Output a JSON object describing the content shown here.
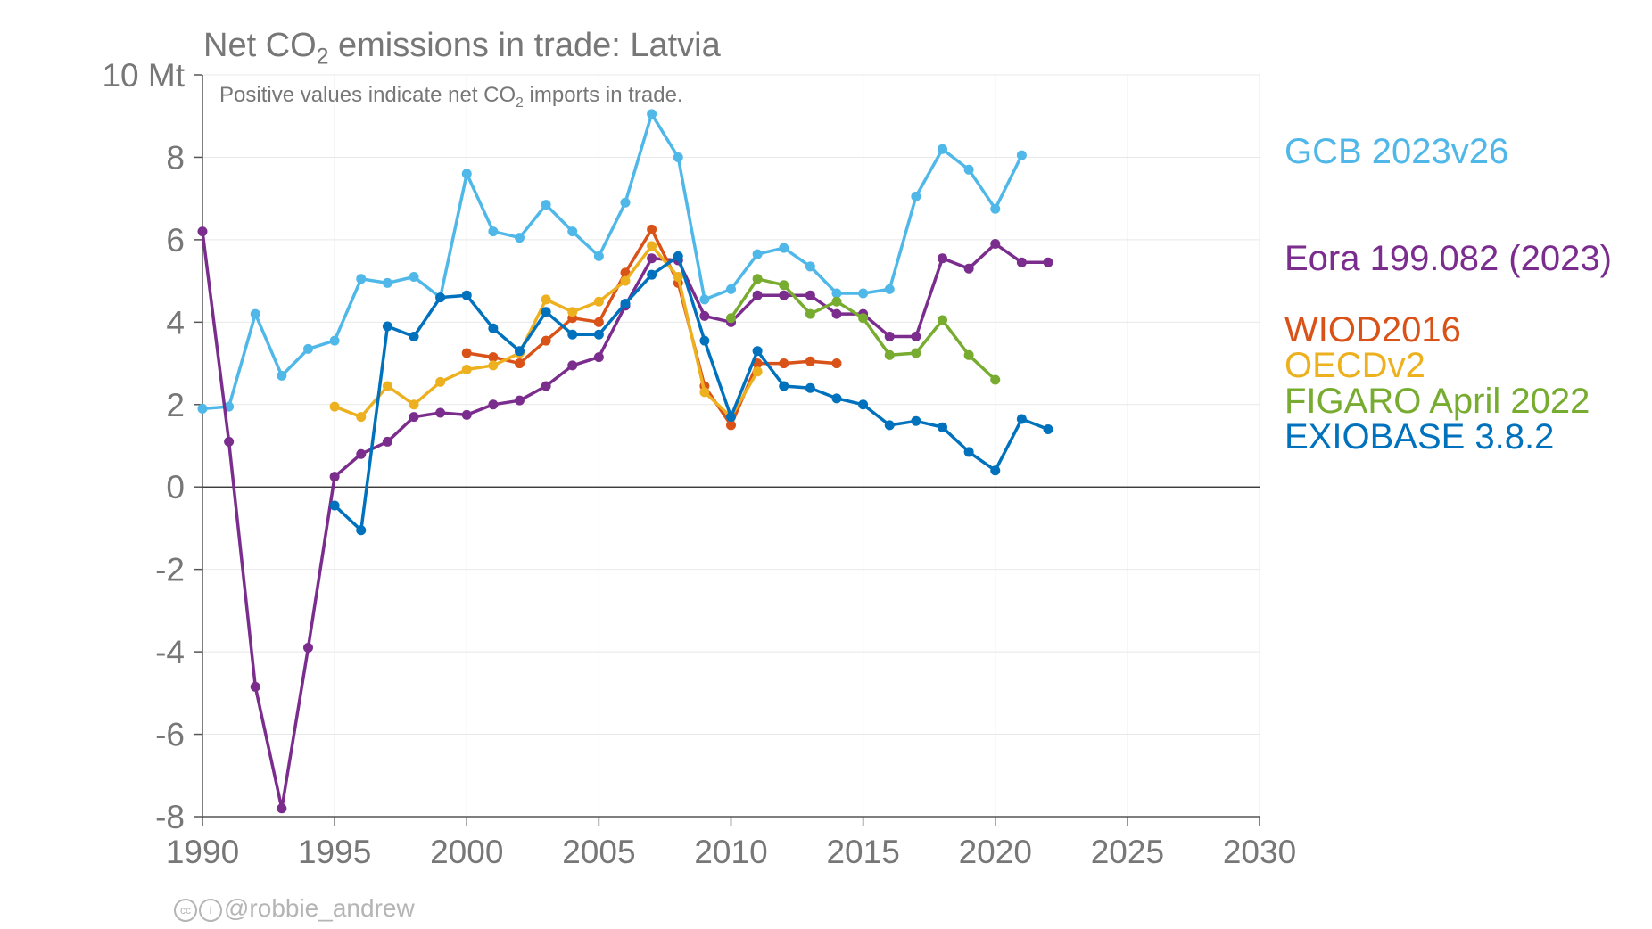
{
  "chart_data": {
    "type": "line",
    "title_prefix": "Net CO",
    "title_sub": "2",
    "title_suffix": " emissions in trade: Latvia",
    "subtitle_prefix": "Positive values indicate net CO",
    "subtitle_sub": "2",
    "subtitle_suffix": " imports in trade.",
    "ylim": [
      -8,
      10
    ],
    "xlim": [
      1990,
      2030
    ],
    "y_ticks": [
      {
        "value": 10,
        "label": "10 Mt"
      },
      {
        "value": 8,
        "label": "8"
      },
      {
        "value": 6,
        "label": "6"
      },
      {
        "value": 4,
        "label": "4"
      },
      {
        "value": 2,
        "label": "2"
      },
      {
        "value": 0,
        "label": "0"
      },
      {
        "value": -2,
        "label": "-2"
      },
      {
        "value": -4,
        "label": "-4"
      },
      {
        "value": -6,
        "label": "-6"
      },
      {
        "value": -8,
        "label": "-8"
      }
    ],
    "x_ticks": [
      {
        "value": 1990,
        "label": "1990"
      },
      {
        "value": 1995,
        "label": "1995"
      },
      {
        "value": 2000,
        "label": "2000"
      },
      {
        "value": 2005,
        "label": "2005"
      },
      {
        "value": 2010,
        "label": "2010"
      },
      {
        "value": 2015,
        "label": "2015"
      },
      {
        "value": 2020,
        "label": "2020"
      },
      {
        "value": 2025,
        "label": "2025"
      },
      {
        "value": 2030,
        "label": "2030"
      }
    ],
    "grid": true,
    "legend_placement": "right",
    "series": [
      {
        "name": "GCB 2023v26",
        "color": "#4fb8e8",
        "x": [
          1990,
          1991,
          1992,
          1993,
          1994,
          1995,
          1996,
          1997,
          1998,
          1999,
          2000,
          2001,
          2002,
          2003,
          2004,
          2005,
          2006,
          2007,
          2008,
          2009,
          2010,
          2011,
          2012,
          2013,
          2014,
          2015,
          2016,
          2017,
          2018,
          2019,
          2020,
          2021
        ],
        "y": [
          1.9,
          1.95,
          4.2,
          2.7,
          3.35,
          3.55,
          5.05,
          4.95,
          5.1,
          4.6,
          7.6,
          6.2,
          6.05,
          6.85,
          6.2,
          5.6,
          6.9,
          9.05,
          8.0,
          4.55,
          4.8,
          5.65,
          5.8,
          5.35,
          4.7,
          4.7,
          4.8,
          7.05,
          8.2,
          7.7,
          6.75,
          8.05
        ]
      },
      {
        "name": "Eora 199.082 (2023)",
        "color": "#7b2d8e",
        "x": [
          1990,
          1991,
          1992,
          1993,
          1994,
          1995,
          1996,
          1997,
          1998,
          1999,
          2000,
          2001,
          2002,
          2003,
          2004,
          2005,
          2006,
          2007,
          2008,
          2009,
          2010,
          2011,
          2012,
          2013,
          2014,
          2015,
          2016,
          2017,
          2018,
          2019,
          2020,
          2021,
          2022
        ],
        "y": [
          6.2,
          1.1,
          -4.85,
          -7.8,
          -3.9,
          0.25,
          0.8,
          1.1,
          1.7,
          1.8,
          1.75,
          2.0,
          2.1,
          2.45,
          2.95,
          3.15,
          4.4,
          5.55,
          5.5,
          4.15,
          4.0,
          4.65,
          4.65,
          4.65,
          4.2,
          4.2,
          3.65,
          3.65,
          5.55,
          5.3,
          5.9,
          5.45,
          5.45
        ]
      },
      {
        "name": "WIOD2016",
        "color": "#d95319",
        "x": [
          2000,
          2001,
          2002,
          2003,
          2004,
          2005,
          2006,
          2007,
          2008,
          2009,
          2010,
          2011,
          2012,
          2013,
          2014
        ],
        "y": [
          3.25,
          3.15,
          3.0,
          3.55,
          4.1,
          4.0,
          5.2,
          6.25,
          4.95,
          2.45,
          1.5,
          3.0,
          3.0,
          3.05,
          3.0
        ]
      },
      {
        "name": "OECDv2",
        "color": "#edb120",
        "x": [
          1995,
          1996,
          1997,
          1998,
          1999,
          2000,
          2001,
          2002,
          2003,
          2004,
          2005,
          2006,
          2007,
          2008,
          2009,
          2010,
          2011
        ],
        "y": [
          1.95,
          1.7,
          2.45,
          2.0,
          2.55,
          2.85,
          2.95,
          3.25,
          4.55,
          4.25,
          4.5,
          5.0,
          5.85,
          5.1,
          2.3,
          1.7,
          2.8
        ]
      },
      {
        "name": "FIGARO April 2022",
        "color": "#77ac30",
        "x": [
          2010,
          2011,
          2012,
          2013,
          2014,
          2015,
          2016,
          2017,
          2018,
          2019,
          2020
        ],
        "y": [
          4.1,
          5.05,
          4.9,
          4.2,
          4.5,
          4.1,
          3.2,
          3.25,
          4.05,
          3.2,
          2.6
        ]
      },
      {
        "name": "EXIOBASE 3.8.2",
        "color": "#0072bd",
        "x": [
          1995,
          1996,
          1997,
          1998,
          1999,
          2000,
          2001,
          2002,
          2003,
          2004,
          2005,
          2006,
          2007,
          2008,
          2009,
          2010,
          2011,
          2012,
          2013,
          2014,
          2015,
          2016,
          2017,
          2018,
          2019,
          2020,
          2021,
          2022
        ],
        "y": [
          -0.45,
          -1.05,
          3.9,
          3.65,
          4.6,
          4.65,
          3.85,
          3.3,
          4.25,
          3.7,
          3.7,
          4.45,
          5.15,
          5.6,
          3.55,
          1.7,
          3.3,
          2.45,
          2.4,
          2.15,
          2.0,
          1.5,
          1.6,
          1.45,
          0.85,
          0.4,
          1.65,
          1.4
        ]
      }
    ]
  },
  "credit": "@robbie_andrew"
}
